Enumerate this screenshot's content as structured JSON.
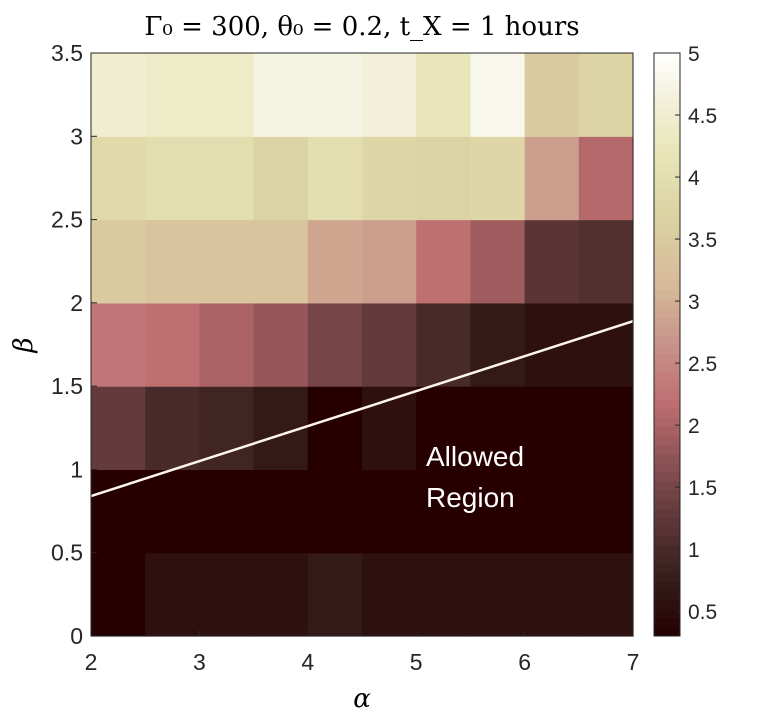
{
  "chart_data": {
    "type": "heatmap",
    "title": "Γ₀ = 300, θ₀ = 0.2, t_X = 1 hours",
    "xlabel": "α",
    "ylabel": "β",
    "xlim": [
      2,
      7
    ],
    "ylim": [
      0,
      3.5
    ],
    "x_ticks": [
      "2",
      "3",
      "4",
      "5",
      "6",
      "7"
    ],
    "y_ticks": [
      "0",
      "0.5",
      "1",
      "1.5",
      "2",
      "2.5",
      "3",
      "3.5"
    ],
    "x_bin_edges": [
      2,
      2.5,
      3,
      3.5,
      4,
      4.5,
      5,
      5.5,
      6,
      6.5,
      7
    ],
    "y_bin_edges": [
      0,
      0.5,
      1,
      1.5,
      2,
      2.5,
      3,
      3.5
    ],
    "values": [
      [
        0.3,
        0.55,
        0.55,
        0.55,
        0.7,
        0.55,
        0.55,
        0.55,
        0.55,
        0.55
      ],
      [
        0.3,
        0.3,
        0.3,
        0.3,
        0.3,
        0.3,
        0.3,
        0.3,
        0.3,
        0.3
      ],
      [
        1.3,
        1.0,
        0.9,
        0.7,
        0.3,
        0.55,
        0.3,
        0.3,
        0.3,
        0.3
      ],
      [
        2.3,
        2.2,
        2.0,
        1.8,
        1.5,
        1.3,
        1.0,
        0.7,
        0.55,
        0.55
      ],
      [
        3.5,
        3.4,
        3.4,
        3.4,
        2.9,
        2.8,
        2.2,
        1.9,
        1.2,
        1.1
      ],
      [
        3.9,
        4.0,
        4.0,
        3.7,
        4.0,
        3.8,
        3.7,
        3.8,
        2.8,
        2.1
      ],
      [
        4.5,
        4.4,
        4.4,
        4.7,
        4.7,
        4.6,
        4.2,
        4.8,
        3.5,
        3.7
      ]
    ],
    "colorbar": {
      "range": [
        0.3,
        5
      ],
      "ticks": [
        "0.5",
        "1",
        "1.5",
        "2",
        "2.5",
        "3",
        "3.5",
        "4",
        "4.5",
        "5"
      ]
    },
    "boundary_line": {
      "x": [
        2,
        7
      ],
      "y": [
        0.84,
        1.89
      ]
    },
    "annotation": [
      "Allowed",
      "Region"
    ],
    "grid": false
  }
}
